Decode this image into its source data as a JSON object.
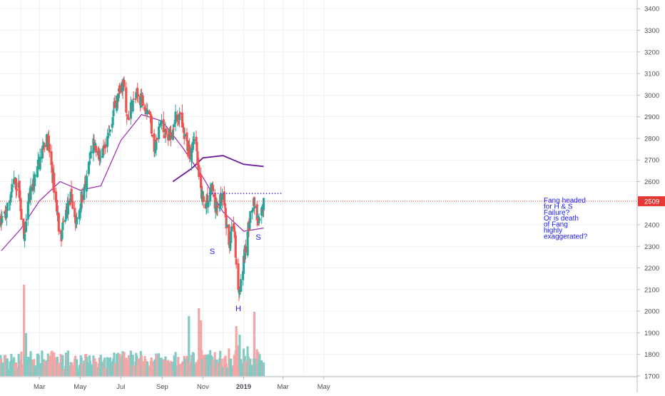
{
  "chart_data": {
    "type": "candlestick",
    "x_ticks": [
      "Mar",
      "May",
      "Jul",
      "Sep",
      "Nov",
      "2019",
      "Mar",
      "May"
    ],
    "y_ticks": [
      1700,
      1800,
      1900,
      2000,
      2100,
      2200,
      2300,
      2400,
      2500,
      2600,
      2700,
      2800,
      2900,
      3000,
      3100,
      3200,
      3300,
      3400
    ],
    "ylim": [
      1680,
      3450
    ],
    "last_price": {
      "value": 2509,
      "label": "2509",
      "color": "#e53935"
    },
    "resistance_level": 2545,
    "annotations": {
      "pattern_labels": [
        {
          "text": "S",
          "x": "2018-11-15",
          "y": 2265
        },
        {
          "text": "H",
          "x": "2018-12-24",
          "y": 2000
        },
        {
          "text": "S",
          "x": "2019-01-23",
          "y": 2330
        }
      ],
      "comment": [
        "Fang headed",
        "for H & S",
        "Failure?",
        "Or is death",
        "of Fang",
        "highly",
        "exaggerated?"
      ]
    },
    "moving_averages": [
      {
        "color": "#9c27b0",
        "points": [
          [
            "2018-01-03",
            2280
          ],
          [
            "2018-02-01",
            2380
          ],
          [
            "2018-03-01",
            2510
          ],
          [
            "2018-04-01",
            2600
          ],
          [
            "2018-05-01",
            2560
          ],
          [
            "2018-06-01",
            2580
          ],
          [
            "2018-07-01",
            2790
          ],
          [
            "2018-08-01",
            2910
          ],
          [
            "2018-09-01",
            2880
          ],
          [
            "2018-10-01",
            2760
          ],
          [
            "2018-11-01",
            2620
          ],
          [
            "2018-12-01",
            2460
          ],
          [
            "2019-01-01",
            2370
          ],
          [
            "2019-01-31",
            2385
          ]
        ]
      },
      {
        "color": "#6a1b9a",
        "points": [
          [
            "2018-09-17",
            2600
          ],
          [
            "2018-10-15",
            2660
          ],
          [
            "2018-11-01",
            2710
          ],
          [
            "2018-12-01",
            2720
          ],
          [
            "2019-01-01",
            2680
          ],
          [
            "2019-01-31",
            2670
          ]
        ]
      }
    ],
    "colors": {
      "up": "#26a69a",
      "down": "#ef5350",
      "up_volume": "#80cbc4",
      "down_volume": "#f4a6a6",
      "annotation": "#1a1aff",
      "grid": "#edf1f5"
    }
  }
}
